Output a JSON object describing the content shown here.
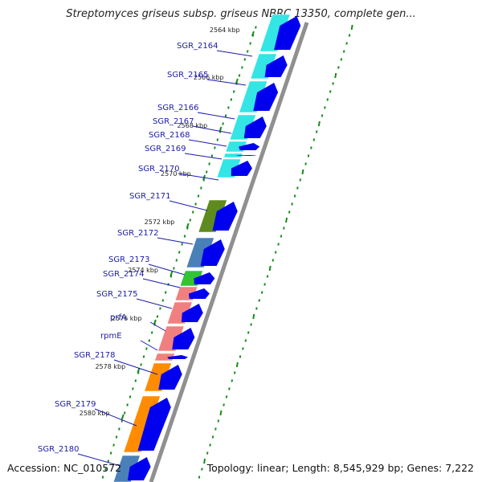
{
  "title": "Streptomyces griseus subsp. griseus NBRC 13350, complete gen...",
  "footer": {
    "accession": "Accession: NC_010572",
    "topology": "Topology: linear; Length: 8,545,929 bp; Genes: 7,222"
  },
  "ticks": [
    "2564 kbp",
    "2566 kbp",
    "2568 kbp",
    "2570 kbp",
    "2572 kbp",
    "2574 kbp",
    "2576 kbp",
    "2578 kbp",
    "2580 kbp"
  ],
  "genes": [
    {
      "name": "SGR_2164",
      "color": "#33e5e5"
    },
    {
      "name": "SGR_2165",
      "color": "#33e5e5"
    },
    {
      "name": "SGR_2166",
      "color": "#33e5e5"
    },
    {
      "name": "SGR_2167",
      "color": "#33e5e5"
    },
    {
      "name": "SGR_2168",
      "color": "#33e5e5"
    },
    {
      "name": "SGR_2169",
      "color": "#33e5e5"
    },
    {
      "name": "SGR_2170",
      "color": "#33e5e5"
    },
    {
      "name": "SGR_2171",
      "color": "#5e8a1e"
    },
    {
      "name": "SGR_2172",
      "color": "#4a80b8"
    },
    {
      "name": "SGR_2173",
      "color": "#33c433"
    },
    {
      "name": "SGR_2174",
      "color": "#f08080"
    },
    {
      "name": "SGR_2175",
      "color": "#f08080"
    },
    {
      "name": "prfA",
      "color": "#f08080"
    },
    {
      "name": "rpmE",
      "color": "#f08080"
    },
    {
      "name": "SGR_2178",
      "color": "#ff8c00"
    },
    {
      "name": "SGR_2179",
      "color": "#ff8c00"
    },
    {
      "name": "SGR_2180",
      "color": "#4a80b8"
    }
  ],
  "colors": {
    "arrow": "#0000ee",
    "label": "#1a1aa8",
    "tick": "#1a8a1a",
    "backbone": "#888888"
  }
}
